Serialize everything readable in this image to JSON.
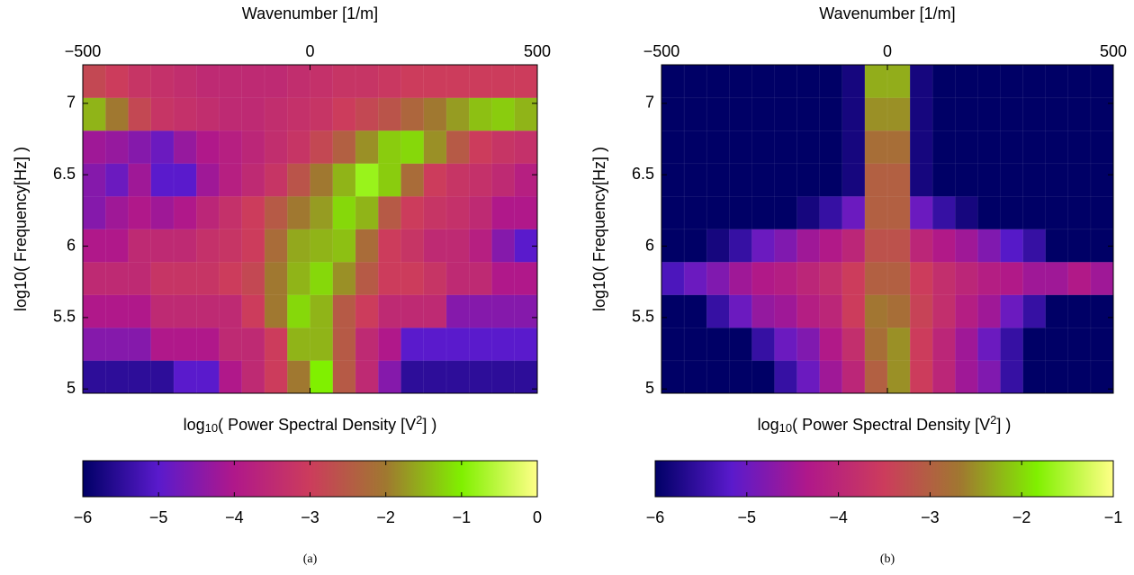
{
  "chart_data": [
    {
      "type": "heatmap",
      "x_label": "Wavenumber [1/m]",
      "y_label": "log10( Frequency[Hz] )",
      "colorbar_label": [
        "log",
        "10",
        "( Power Spectral Density [V",
        "2",
        "] )"
      ],
      "caption": "(a)",
      "xlim": [
        -500,
        500
      ],
      "xticks": [
        {
          "value": -500,
          "label": "−500"
        },
        0,
        500
      ],
      "ylim": [
        4.97,
        7.27
      ],
      "yticks": [
        5,
        5.5,
        6,
        6.5,
        7
      ],
      "clim": [
        -6,
        0
      ],
      "cticks": [
        {
          "value": -6,
          "label": "−6"
        },
        {
          "value": -5,
          "label": "−5"
        },
        {
          "value": -4,
          "label": "−4"
        },
        {
          "value": -3,
          "label": "−3"
        },
        {
          "value": -2,
          "label": "−2"
        },
        {
          "value": -1,
          "label": "−1"
        },
        0
      ],
      "colormap": [
        "#000066",
        "#5a1acc",
        "#b0188a",
        "#cc3c5c",
        "#a07830",
        "#80f000",
        "#ffff88"
      ],
      "xbins": [
        -500,
        -450,
        -400,
        -350,
        -300,
        -250,
        -200,
        -150,
        -100,
        -50,
        0,
        50,
        100,
        150,
        200,
        250,
        300,
        350,
        400,
        450,
        500
      ],
      "ybins": [
        4.97,
        5.2,
        5.43,
        5.66,
        5.89,
        6.12,
        6.35,
        6.58,
        6.81,
        7.04,
        7.27
      ],
      "values": [
        [
          -5.5,
          -5.5,
          -5.5,
          -5.5,
          -5,
          -5,
          -4,
          -3.5,
          -3,
          -2,
          -1,
          -2.5,
          -3.5,
          -4.5,
          -5.5,
          -5.5,
          -5.5,
          -5.5,
          -5.5,
          -5.5
        ],
        [
          -4.5,
          -4.5,
          -4.5,
          -4,
          -4,
          -4,
          -3.5,
          -3.5,
          -3,
          -1.5,
          -1.5,
          -2.5,
          -3.5,
          -4,
          -5,
          -5,
          -5,
          -5,
          -5,
          -5
        ],
        [
          -4,
          -4,
          -4,
          -3.5,
          -3.5,
          -3.5,
          -3.5,
          -3,
          -2,
          -1.2,
          -1.5,
          -2.5,
          -3,
          -3.5,
          -3.5,
          -3.5,
          -4.5,
          -4.5,
          -4.5,
          -4.5
        ],
        [
          -3.5,
          -3.5,
          -3.5,
          -3.2,
          -3.2,
          -3.2,
          -3,
          -2.8,
          -2,
          -1.5,
          -1.2,
          -1.8,
          -2.5,
          -3,
          -3,
          -3.2,
          -3.5,
          -3.5,
          -4,
          -4
        ],
        [
          -4,
          -4,
          -3.5,
          -3.5,
          -3.5,
          -3.3,
          -3.2,
          -3,
          -2.2,
          -1.6,
          -1.5,
          -1.4,
          -2.2,
          -3,
          -3.2,
          -3.5,
          -3.5,
          -3.8,
          -4.5,
          -5
        ],
        [
          -4.5,
          -4.2,
          -4,
          -4.2,
          -4,
          -3.6,
          -3.3,
          -3,
          -2.5,
          -2,
          -1.7,
          -1.2,
          -1.5,
          -2.5,
          -3,
          -3.2,
          -3.3,
          -3.5,
          -4,
          -4
        ],
        [
          -4.5,
          -4.8,
          -4.2,
          -5,
          -5,
          -4.2,
          -3.8,
          -3.5,
          -3.2,
          -2.6,
          -2,
          -1.5,
          -0.8,
          -1.3,
          -2.2,
          -3,
          -3.2,
          -3.3,
          -3.5,
          -3.8
        ],
        [
          -4.2,
          -4.3,
          -4.5,
          -4.8,
          -4.3,
          -4,
          -3.8,
          -3.6,
          -3.4,
          -3.2,
          -2.8,
          -2.4,
          -1.8,
          -1.3,
          -1.2,
          -1.8,
          -2.5,
          -3,
          -3.2,
          -3.3
        ],
        [
          -1.5,
          -2,
          -2.8,
          -3.2,
          -3.3,
          -3.4,
          -3.5,
          -3.5,
          -3.4,
          -3.3,
          -3.2,
          -3,
          -2.8,
          -2.6,
          -2.3,
          -2,
          -1.7,
          -1.4,
          -1.3,
          -1.5
        ],
        [
          -2.8,
          -3,
          -3.2,
          -3.3,
          -3.4,
          -3.5,
          -3.5,
          -3.5,
          -3.5,
          -3.4,
          -3.3,
          -3.2,
          -3.2,
          -3.1,
          -3,
          -3,
          -3,
          -3,
          -3,
          -3
        ]
      ]
    },
    {
      "type": "heatmap",
      "x_label": "Wavenumber [1/m]",
      "y_label": "log10( Frequency[Hz] )",
      "colorbar_label": [
        "log",
        "10",
        "( Power Spectral Density [V",
        "2",
        "] )"
      ],
      "caption": "(b)",
      "xlim": [
        -500,
        500
      ],
      "xticks": [
        {
          "value": -500,
          "label": "−500"
        },
        0,
        500
      ],
      "ylim": [
        4.97,
        7.27
      ],
      "yticks": [
        5,
        5.5,
        6,
        6.5,
        7
      ],
      "clim": [
        -6,
        -1
      ],
      "cticks": [
        {
          "value": -6,
          "label": "−6"
        },
        {
          "value": -5,
          "label": "−5"
        },
        {
          "value": -4,
          "label": "−4"
        },
        {
          "value": -3,
          "label": "−3"
        },
        {
          "value": -2,
          "label": "−2"
        },
        {
          "value": -1,
          "label": "−1"
        }
      ],
      "colormap": [
        "#000066",
        "#5a1acc",
        "#b0188a",
        "#cc3c5c",
        "#a07830",
        "#80f000",
        "#ffff88"
      ],
      "xbins": [
        -500,
        -450,
        -400,
        -350,
        -300,
        -250,
        -200,
        -150,
        -100,
        -50,
        0,
        50,
        100,
        150,
        200,
        250,
        300,
        350,
        400,
        450,
        500
      ],
      "ybins": [
        4.97,
        5.2,
        5.43,
        5.66,
        5.89,
        6.12,
        6.35,
        6.58,
        6.81,
        7.04,
        7.27
      ],
      "values": [
        [
          -6,
          -6,
          -6,
          -6,
          -6,
          -5.5,
          -5,
          -4.5,
          -4,
          -3,
          -2.5,
          -3.5,
          -4,
          -4.5,
          -4.8,
          -5.5,
          -6,
          -6,
          -6,
          -6
        ],
        [
          -6,
          -6,
          -6,
          -6,
          -5.5,
          -5,
          -4.8,
          -4.3,
          -3.8,
          -2.8,
          -2.5,
          -3.5,
          -4,
          -4.5,
          -5,
          -5.5,
          -6,
          -6,
          -6,
          -6
        ],
        [
          -6,
          -6,
          -5.5,
          -5,
          -4.6,
          -4.5,
          -4.2,
          -4,
          -3.5,
          -2.7,
          -2.8,
          -3.4,
          -3.8,
          -4.2,
          -4.5,
          -5,
          -5.5,
          -6,
          -6,
          -6
        ],
        [
          -5.3,
          -5,
          -4.8,
          -4.5,
          -4.3,
          -4.2,
          -4,
          -3.8,
          -3.5,
          -3,
          -3,
          -3.5,
          -3.8,
          -4,
          -4.2,
          -4.3,
          -4.5,
          -4.5,
          -4.3,
          -4.5
        ],
        [
          -6,
          -6,
          -5.8,
          -5.5,
          -5,
          -4.8,
          -4.5,
          -4.3,
          -4,
          -3.2,
          -3.2,
          -4,
          -4.3,
          -4.5,
          -4.8,
          -5.2,
          -5.5,
          -6,
          -6,
          -6
        ],
        [
          -6,
          -6,
          -6,
          -6,
          -6,
          -6,
          -5.8,
          -5.5,
          -5,
          -3,
          -3,
          -5,
          -5.5,
          -5.8,
          -6,
          -6,
          -6,
          -6,
          -6,
          -6
        ],
        [
          -6,
          -6,
          -6,
          -6,
          -6,
          -6,
          -6,
          -6,
          -5.8,
          -3,
          -3,
          -5.8,
          -6,
          -6,
          -6,
          -6,
          -6,
          -6,
          -6,
          -6
        ],
        [
          -6,
          -6,
          -6,
          -6,
          -6,
          -6,
          -6,
          -6,
          -5.8,
          -2.8,
          -2.8,
          -5.8,
          -6,
          -6,
          -6,
          -6,
          -6,
          -6,
          -6,
          -6
        ],
        [
          -6,
          -6,
          -6,
          -6,
          -6,
          -6,
          -6,
          -6,
          -5.8,
          -2.5,
          -2.5,
          -5.8,
          -6,
          -6,
          -6,
          -6,
          -6,
          -6,
          -6,
          -6
        ],
        [
          -6,
          -6,
          -6,
          -6,
          -6,
          -6,
          -6,
          -6,
          -5.8,
          -2.3,
          -2.3,
          -5.8,
          -6,
          -6,
          -6,
          -6,
          -6,
          -6,
          -6,
          -6
        ]
      ]
    }
  ]
}
